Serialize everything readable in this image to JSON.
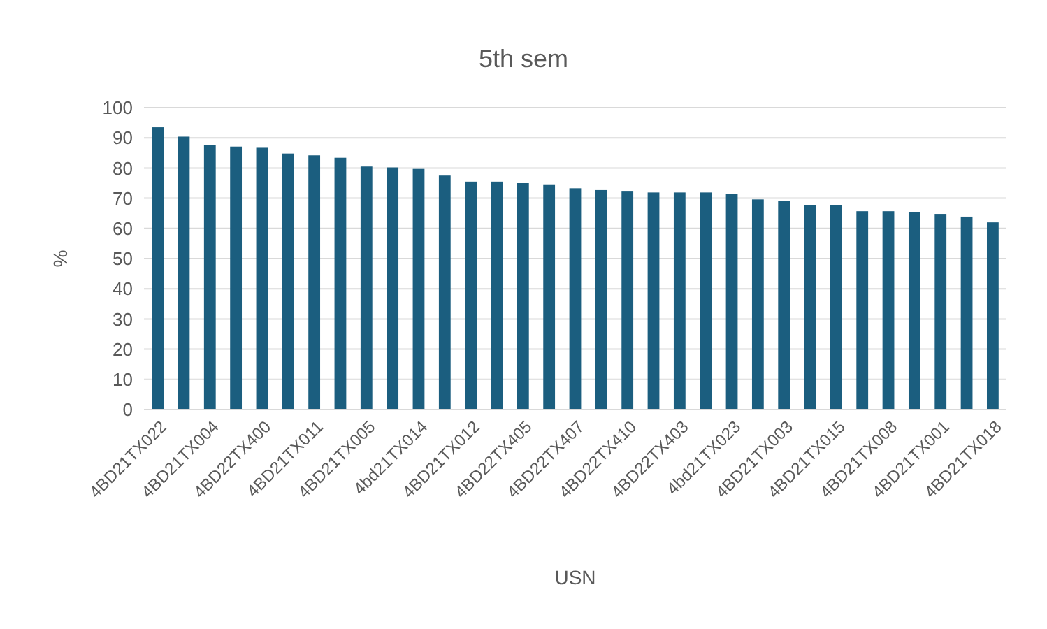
{
  "chart_data": {
    "type": "bar",
    "title": "5th sem",
    "xlabel": "USN",
    "ylabel": "%",
    "categories": [
      "4BD21TX022",
      null,
      "4BD21TX004",
      null,
      "4BD22TX400",
      null,
      "4BD21TX011",
      null,
      "4BD21TX005",
      null,
      "4bd21TX014",
      null,
      "4BD21TX012",
      null,
      "4BD22TX405",
      null,
      "4BD22TX407",
      null,
      "4BD22TX410",
      null,
      "4BD22TX403",
      null,
      "4bd21TX023",
      null,
      "4BD21TX003",
      null,
      "4BD21TX015",
      null,
      "4BD21TX008",
      null,
      "4BD21TX001",
      null,
      "4BD21TX018"
    ],
    "values": [
      93.5,
      90.4,
      87.6,
      87.1,
      86.7,
      84.8,
      84.2,
      83.4,
      80.5,
      80.2,
      79.7,
      77.5,
      75.5,
      75.5,
      75.0,
      74.6,
      73.3,
      72.7,
      72.2,
      71.9,
      71.9,
      71.9,
      71.3,
      69.6,
      69.1,
      67.6,
      67.6,
      65.7,
      65.7,
      65.4,
      64.8,
      63.9,
      62.0
    ],
    "color": "#1b5e7f",
    "ylim": [
      0,
      100
    ],
    "yticks": [
      0,
      10,
      20,
      30,
      40,
      50,
      60,
      70,
      80,
      90,
      100
    ],
    "grid": "y"
  }
}
